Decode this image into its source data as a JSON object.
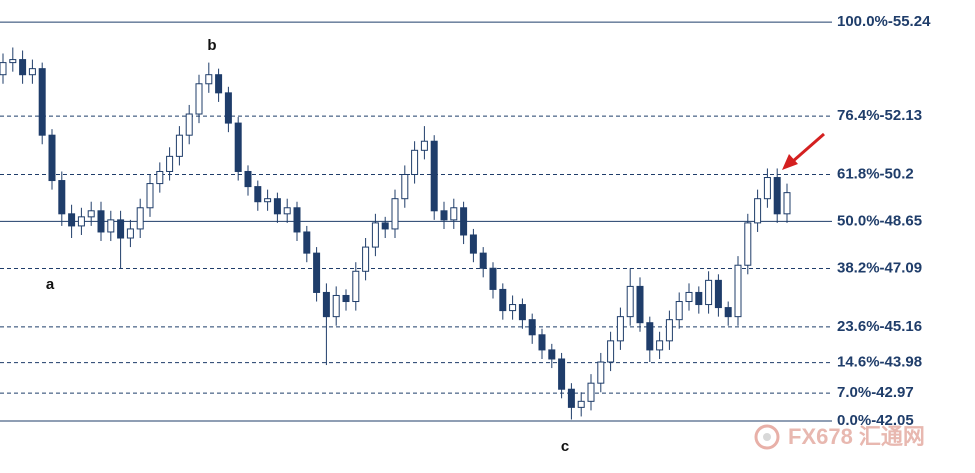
{
  "chart_data": {
    "type": "candlestick",
    "open": [
      53.5,
      53.9,
      54.0,
      53.5,
      53.7,
      51.5,
      50.0,
      48.9,
      48.5,
      48.8,
      49.0,
      48.3,
      48.7,
      48.1,
      48.4,
      49.1,
      49.9,
      50.3,
      50.8,
      51.5,
      52.2,
      53.2,
      53.5,
      52.9,
      51.9,
      50.3,
      49.8,
      49.3,
      49.4,
      48.9,
      49.1,
      48.3,
      47.6,
      46.3,
      45.5,
      46.2,
      46.0,
      47.0,
      47.8,
      48.6,
      48.4,
      49.4,
      50.2,
      51.0,
      51.3,
      49.0,
      48.7,
      49.1,
      48.2,
      47.6,
      47.1,
      46.4,
      45.7,
      45.9,
      45.4,
      44.9,
      44.4,
      44.1,
      43.1,
      42.5,
      42.7,
      43.3,
      44.0,
      44.7,
      45.5,
      46.5,
      45.3,
      44.4,
      44.7,
      45.4,
      46.0,
      46.3,
      45.9,
      46.7,
      45.8,
      45.5,
      47.2,
      48.6,
      49.4,
      50.1,
      48.9
    ],
    "high": [
      54.2,
      54.4,
      54.3,
      54.0,
      53.9,
      51.7,
      50.3,
      49.2,
      49.1,
      49.3,
      49.3,
      49.0,
      49.0,
      48.7,
      49.4,
      50.2,
      50.6,
      51.1,
      51.8,
      52.5,
      53.5,
      53.9,
      53.7,
      53.1,
      52.1,
      50.5,
      50.0,
      49.7,
      49.6,
      49.4,
      49.3,
      48.5,
      47.8,
      46.6,
      46.5,
      46.4,
      47.3,
      48.1,
      48.9,
      48.8,
      49.7,
      50.5,
      51.3,
      51.8,
      51.5,
      49.3,
      49.4,
      49.3,
      48.4,
      47.8,
      47.3,
      46.6,
      46.2,
      46.1,
      45.6,
      45.1,
      44.6,
      44.3,
      43.3,
      43.0,
      43.6,
      44.3,
      45.0,
      45.8,
      47.1,
      46.8,
      45.5,
      45.0,
      45.7,
      46.3,
      46.6,
      46.5,
      47.0,
      46.9,
      46.0,
      47.5,
      48.9,
      49.7,
      50.4,
      50.4,
      49.9
    ],
    "low": [
      53.2,
      53.6,
      53.2,
      53.2,
      51.2,
      49.7,
      48.5,
      48.1,
      48.2,
      48.5,
      48.0,
      48.0,
      47.1,
      47.8,
      48.1,
      48.8,
      49.6,
      50.0,
      50.5,
      51.2,
      51.9,
      52.9,
      52.6,
      51.6,
      50.0,
      49.5,
      49.0,
      49.0,
      48.6,
      48.6,
      48.0,
      47.3,
      46.0,
      43.9,
      45.2,
      45.7,
      45.7,
      46.7,
      47.5,
      48.1,
      48.1,
      49.1,
      49.9,
      50.7,
      48.7,
      48.4,
      48.4,
      47.9,
      47.3,
      46.8,
      46.1,
      45.4,
      45.4,
      45.1,
      44.6,
      44.1,
      43.8,
      42.8,
      42.1,
      42.2,
      42.4,
      43.0,
      43.7,
      44.4,
      45.2,
      45.0,
      44.0,
      44.1,
      44.4,
      45.1,
      45.7,
      45.6,
      45.6,
      45.5,
      45.2,
      45.2,
      46.9,
      48.3,
      49.1,
      48.6,
      48.6
    ],
    "close": [
      53.9,
      54.0,
      53.5,
      53.7,
      51.5,
      50.0,
      48.9,
      48.5,
      48.8,
      49.0,
      48.3,
      48.7,
      48.1,
      48.4,
      49.1,
      49.9,
      50.3,
      50.8,
      51.5,
      52.2,
      53.2,
      53.5,
      52.9,
      51.9,
      50.3,
      49.8,
      49.3,
      49.4,
      48.9,
      49.1,
      48.3,
      47.6,
      46.3,
      45.5,
      46.2,
      46.0,
      47.0,
      47.8,
      48.6,
      48.4,
      49.4,
      50.2,
      51.0,
      51.3,
      49.0,
      48.7,
      49.1,
      48.2,
      47.6,
      47.1,
      46.4,
      45.7,
      45.9,
      45.4,
      44.9,
      44.4,
      44.1,
      43.1,
      42.5,
      42.7,
      43.3,
      44.0,
      44.7,
      45.5,
      46.5,
      45.3,
      44.4,
      44.7,
      45.4,
      46.0,
      46.3,
      45.9,
      46.7,
      45.8,
      45.5,
      47.2,
      48.6,
      49.4,
      50.1,
      48.9,
      49.6
    ],
    "color": "#1f3d6a",
    "ylim": [
      40.33,
      55.97
    ],
    "levels": [
      {
        "value": 55.24,
        "label": "100.0%-55.24",
        "dashed": false
      },
      {
        "value": 52.13,
        "label": "76.4%-52.13",
        "dashed": true
      },
      {
        "value": 50.2,
        "label": "61.8%-50.2",
        "dashed": true
      },
      {
        "value": 48.65,
        "label": "50.0%-48.65",
        "dashed": false
      },
      {
        "value": 47.09,
        "label": "38.2%-47.09",
        "dashed": true
      },
      {
        "value": 45.16,
        "label": "23.6%-45.16",
        "dashed": true
      },
      {
        "value": 43.98,
        "label": "14.6%-43.98",
        "dashed": true
      },
      {
        "value": 42.97,
        "label": "7.0%-42.97",
        "dashed": true
      },
      {
        "value": 42.05,
        "label": "0.0%-42.05",
        "dashed": false
      }
    ],
    "annotations": [
      "a",
      "b",
      "c"
    ],
    "watermark": "FX678 汇通网"
  }
}
